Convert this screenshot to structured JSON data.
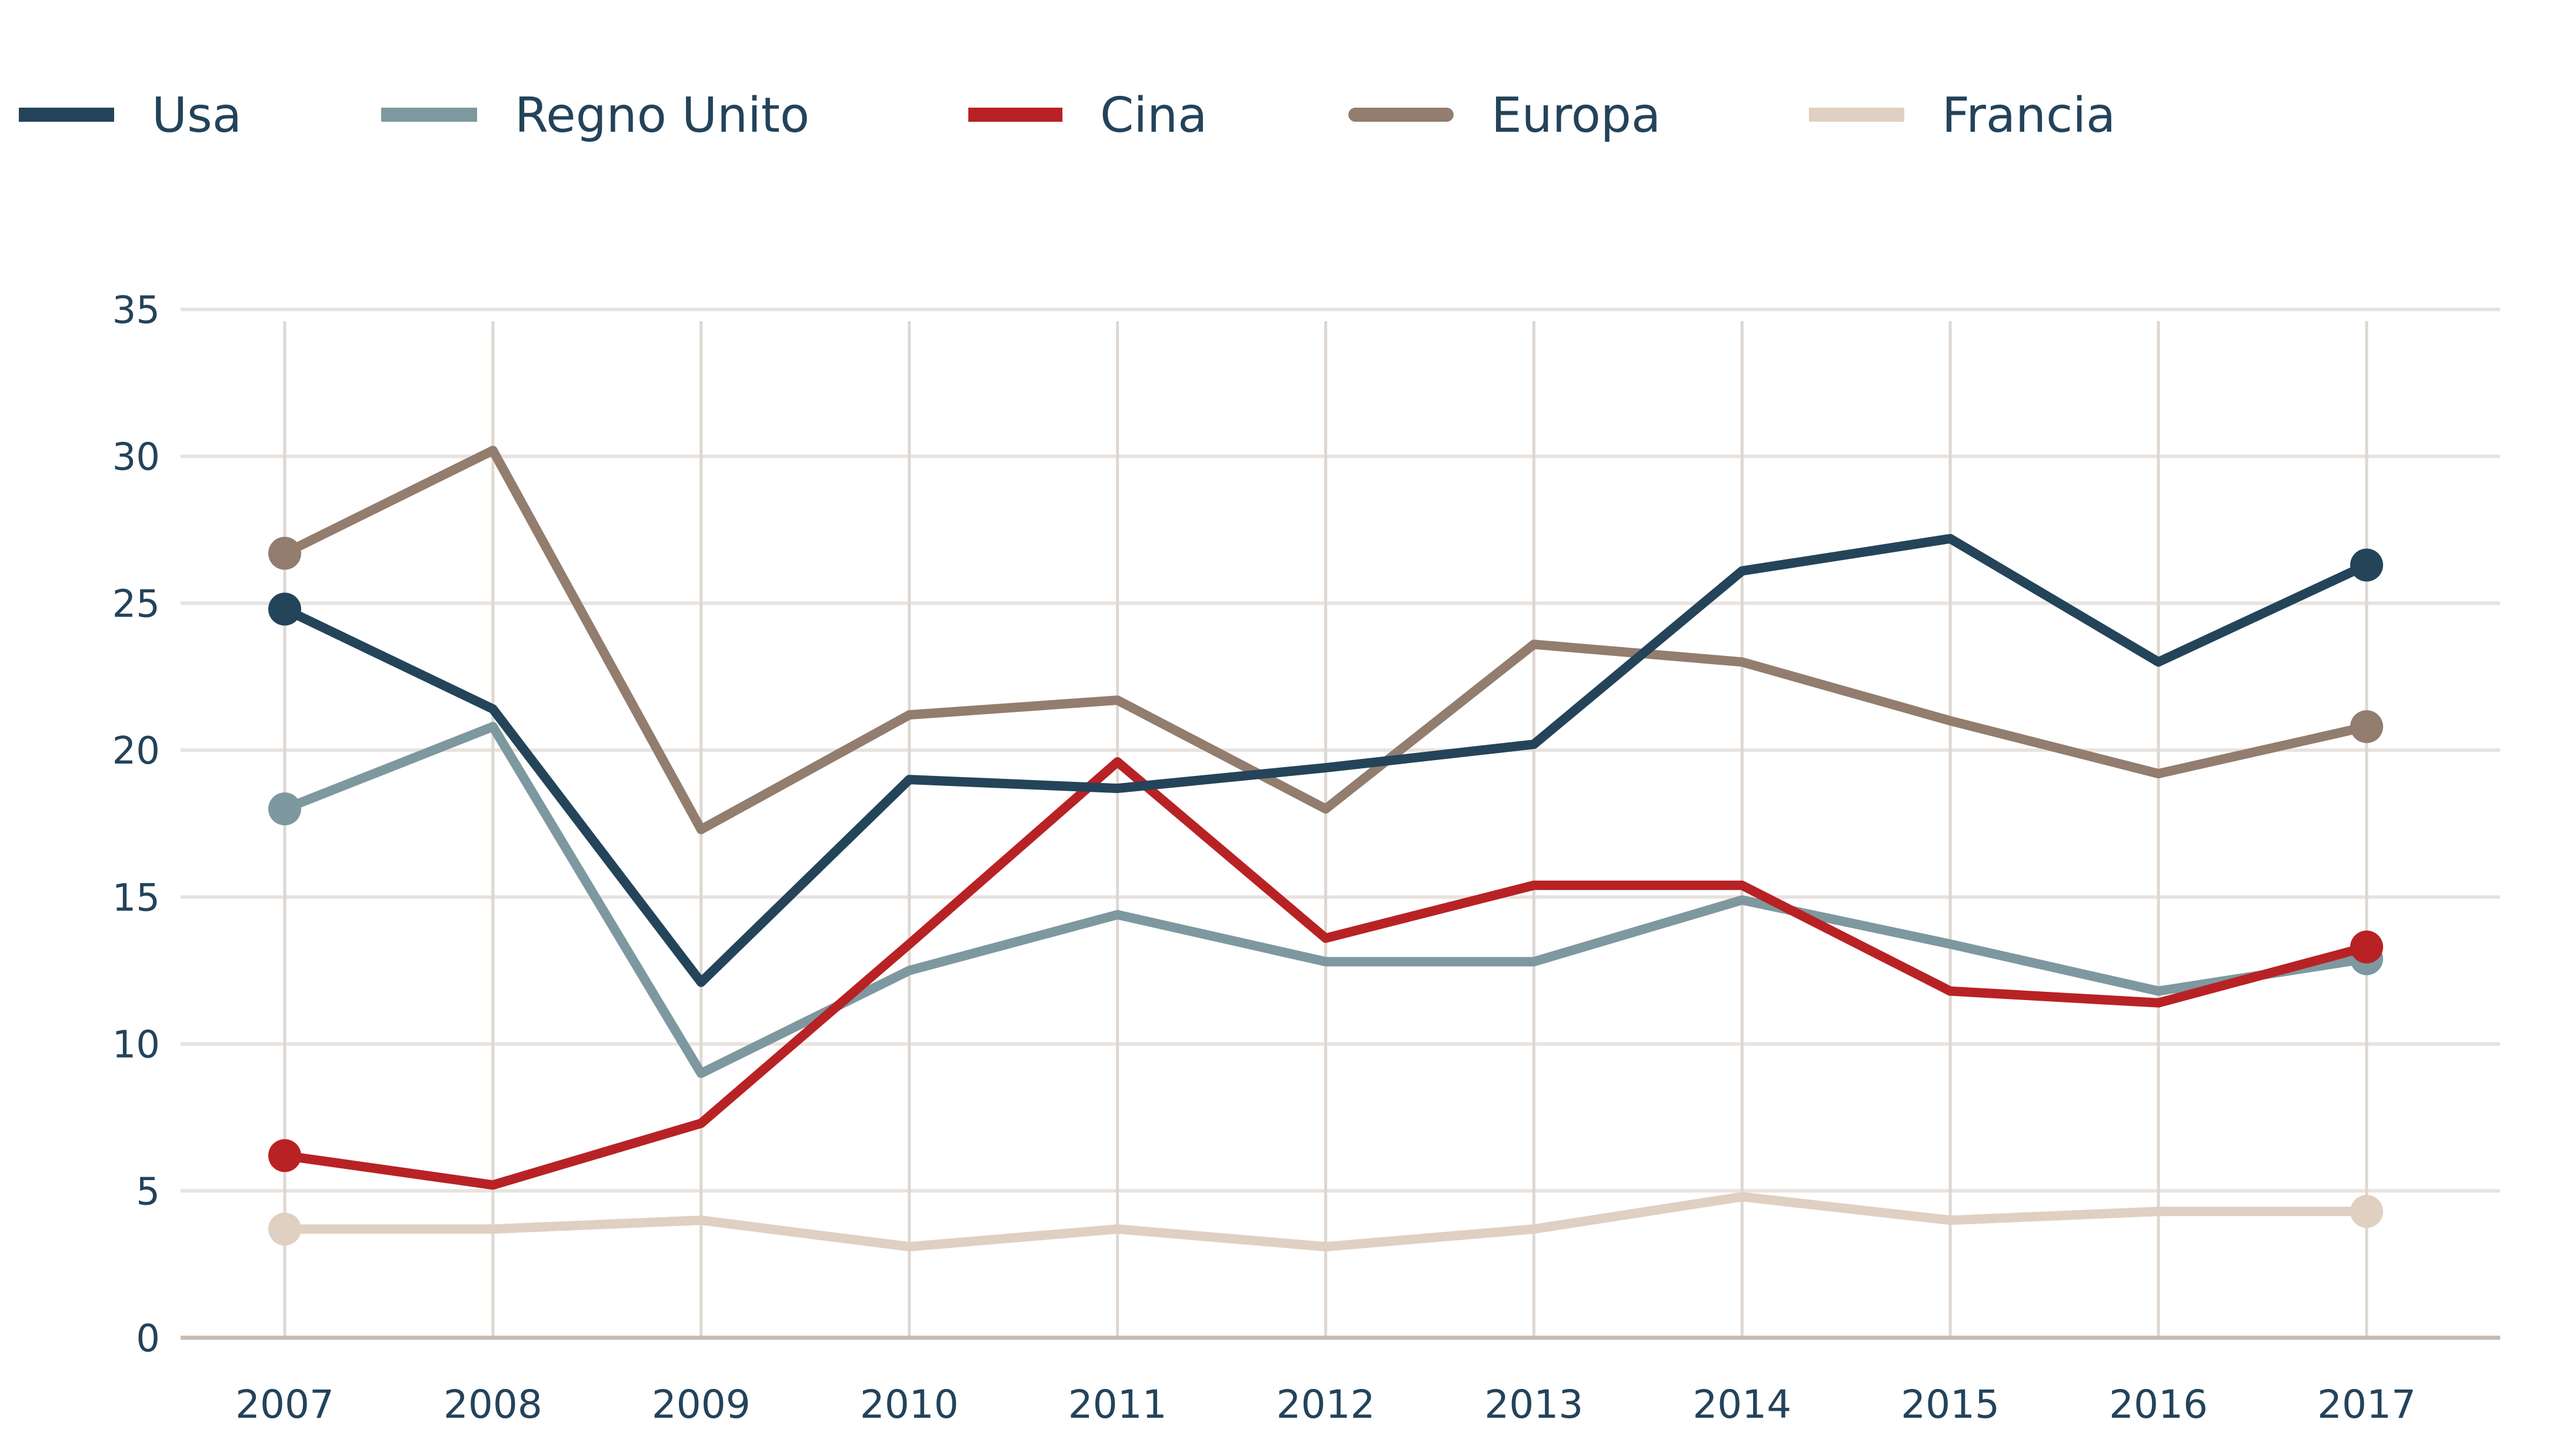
{
  "chart_data": {
    "type": "line",
    "title": "",
    "xlabel": "",
    "ylabel": "",
    "x": [
      "2007",
      "2008",
      "2009",
      "2010",
      "2011",
      "2012",
      "2013",
      "2014",
      "2015",
      "2016",
      "2017"
    ],
    "ylim": [
      0,
      35
    ],
    "yticks": [
      "0",
      "5",
      "10",
      "15",
      "20",
      "25",
      "30",
      "35"
    ],
    "grid": true,
    "legend_position": "top-left",
    "series": [
      {
        "name": "Usa",
        "color": "#24445a",
        "values": [
          24.8,
          21.4,
          12.1,
          19.0,
          18.7,
          19.4,
          20.2,
          26.1,
          27.2,
          23.0,
          26.3
        ]
      },
      {
        "name": "Regno Unito",
        "color": "#7e989f",
        "values": [
          18.0,
          20.8,
          9.0,
          12.5,
          14.4,
          12.8,
          12.8,
          14.9,
          13.4,
          11.8,
          12.9
        ]
      },
      {
        "name": "Cina",
        "color": "#b82225",
        "values": [
          6.2,
          5.2,
          7.3,
          13.4,
          19.6,
          13.6,
          15.4,
          15.4,
          11.8,
          11.4,
          13.3
        ]
      },
      {
        "name": "Europa",
        "color": "#927d6e",
        "values": [
          26.7,
          30.2,
          17.3,
          21.2,
          21.7,
          18.0,
          23.6,
          23.0,
          21.0,
          19.2,
          20.8
        ]
      },
      {
        "name": "Francia",
        "color": "#e0d0c2",
        "values": [
          3.7,
          3.7,
          4.0,
          3.1,
          3.7,
          3.1,
          3.7,
          4.8,
          4.0,
          4.3,
          4.3
        ]
      }
    ]
  }
}
